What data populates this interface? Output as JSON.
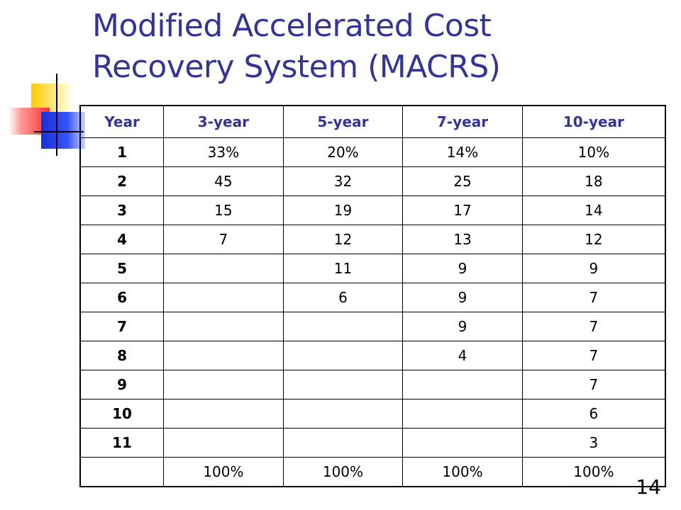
{
  "slide": {
    "title_line1": "Modified Accelerated Cost",
    "title_line2": "Recovery System (MACRS)",
    "page_number": "14"
  },
  "colors": {
    "title": "#333399",
    "header_text": "#333399"
  },
  "table": {
    "headers": [
      "Year",
      "3-year",
      "5-year",
      "7-year",
      "10-year"
    ],
    "rows": [
      {
        "year": "1",
        "c3": "33%",
        "c5": "20%",
        "c7": "14%",
        "c10": "10%"
      },
      {
        "year": "2",
        "c3": "45",
        "c5": "32",
        "c7": "25",
        "c10": "18"
      },
      {
        "year": "3",
        "c3": "15",
        "c5": "19",
        "c7": "17",
        "c10": "14"
      },
      {
        "year": "4",
        "c3": "7",
        "c5": "12",
        "c7": "13",
        "c10": "12"
      },
      {
        "year": "5",
        "c3": "",
        "c5": "11",
        "c7": "9",
        "c10": "9"
      },
      {
        "year": "6",
        "c3": "",
        "c5": "6",
        "c7": "9",
        "c10": "7"
      },
      {
        "year": "7",
        "c3": "",
        "c5": "",
        "c7": "9",
        "c10": "7"
      },
      {
        "year": "8",
        "c3": "",
        "c5": "",
        "c7": "4",
        "c10": "7"
      },
      {
        "year": "9",
        "c3": "",
        "c5": "",
        "c7": "",
        "c10": "7"
      },
      {
        "year": "10",
        "c3": "",
        "c5": "",
        "c7": "",
        "c10": "6"
      },
      {
        "year": "11",
        "c3": "",
        "c5": "",
        "c7": "",
        "c10": "3"
      },
      {
        "year": "",
        "c3": "100%",
        "c5": "100%",
        "c7": "100%",
        "c10": "100%"
      }
    ]
  }
}
